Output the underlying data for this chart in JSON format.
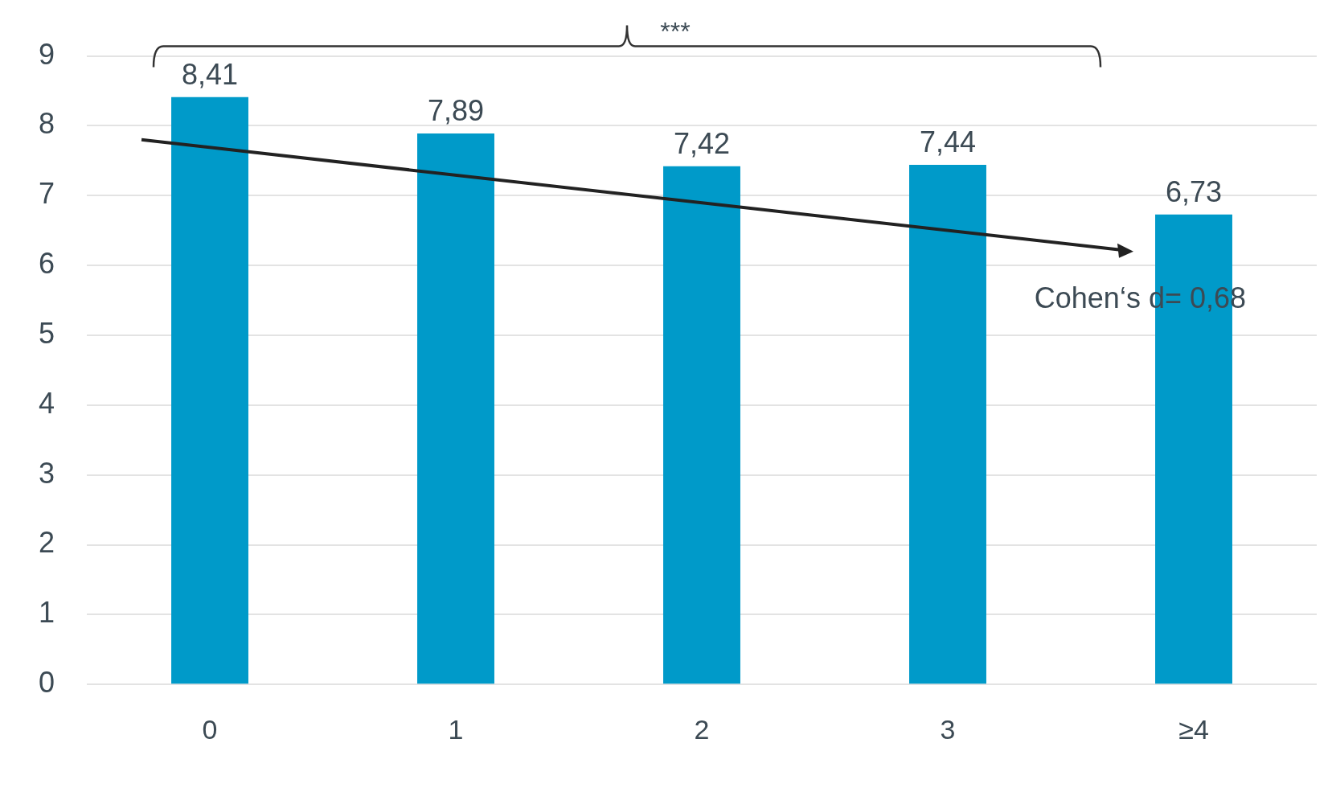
{
  "chart_data": {
    "type": "bar",
    "categories": [
      "0",
      "1",
      "2",
      "3",
      "≥4"
    ],
    "values": [
      8.41,
      7.89,
      7.42,
      7.44,
      6.73
    ],
    "value_labels": [
      "8,41",
      "7,89",
      "7,42",
      "7,44",
      "6,73"
    ],
    "color": "#009ac9",
    "ylim": [
      0,
      9
    ],
    "yticks": [
      0,
      1,
      2,
      3,
      4,
      5,
      6,
      7,
      8,
      9
    ],
    "grid": "y",
    "legend": false,
    "annotations": [
      "***",
      "Cohen‘s d= 0,68"
    ]
  }
}
